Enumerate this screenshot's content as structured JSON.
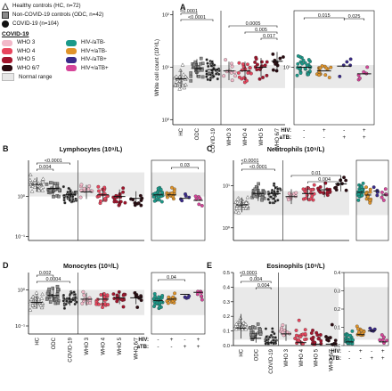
{
  "legend": {
    "cohorts": [
      {
        "label": "Healthy controls (HC, n=72)",
        "shape": "triangle"
      },
      {
        "label": "Non-COVID-19 controls (ODC, n=42)",
        "shape": "square"
      },
      {
        "label": "COVID-19 (n=104)",
        "shape": "circle"
      }
    ],
    "group_title": "COVID-19",
    "groups": [
      {
        "label": "WHO 3",
        "color": "#f2b9c9"
      },
      {
        "label": "WHO 4",
        "color": "#e8455d"
      },
      {
        "label": "WHO 5",
        "color": "#a3142c"
      },
      {
        "label": "WHO 6/7",
        "color": "#2a0a10"
      },
      {
        "label": "HIV-/aTB-",
        "color": "#1a9a8a"
      },
      {
        "label": "HIV+/aTB-",
        "color": "#e0942a"
      },
      {
        "label": "HIV-/aTB+",
        "color": "#3a2a8a"
      },
      {
        "label": "HIV+/aTB+",
        "color": "#d6469a"
      }
    ],
    "normal_range_label": "Normal range"
  },
  "hiv_row_label": "HIV:",
  "atb_row_label": "aTB:",
  "chart_data": [
    {
      "letter": "A",
      "title": "",
      "type": "scatter",
      "log_y": true,
      "ylabel": "White cell count (10⁹/L)",
      "yticks": [
        "10⁰",
        "10¹",
        "10²"
      ],
      "categories": [
        "HC",
        "ODC",
        "COVID-19",
        "WHO 3",
        "WHO 4",
        "WHO 5",
        "WHO 6/7"
      ],
      "medians": [
        6.0,
        9.5,
        9.0,
        8.5,
        8.5,
        10.0,
        13.0
      ],
      "brackets": [
        {
          "from": "HC",
          "to": "ODC",
          "label": "<0.0001"
        },
        {
          "from": "HC",
          "to": "COVID-19",
          "label": "<0.0001"
        },
        {
          "from": "WHO 3",
          "to": "WHO 6/7",
          "label": "0.0005"
        },
        {
          "from": "WHO 4",
          "to": "WHO 6/7",
          "label": "0.005"
        },
        {
          "from": "WHO 5",
          "to": "WHO 6/7",
          "label": "0.017"
        }
      ],
      "normal_range": [
        4,
        11
      ],
      "hiv_groups": {
        "hiv": [
          "-",
          "+",
          "-",
          "+"
        ],
        "atb": [
          "-",
          "-",
          "+",
          "+"
        ],
        "medians": [
          10.0,
          8.5,
          10.5,
          7.5
        ],
        "brackets": [
          {
            "from": "HIV-/aTB-",
            "to": "HIV-/aTB+",
            "label": "0.015"
          },
          {
            "from": "HIV-/aTB+",
            "to": "HIV+/aTB+",
            "label": "0.025"
          }
        ]
      }
    },
    {
      "letter": "B",
      "title": "Lymphocytes (10⁹/L)",
      "type": "scatter",
      "log_y": true,
      "yticks": [
        "10⁻¹",
        "10⁰"
      ],
      "categories": [
        "HC",
        "ODC",
        "COVID-19",
        "WHO 3",
        "WHO 4",
        "WHO 5",
        "WHO 6/7"
      ],
      "medians": [
        2.0,
        1.6,
        1.1,
        1.3,
        1.1,
        1.0,
        0.9
      ],
      "brackets": [
        {
          "from": "HC",
          "to": "COVID-19",
          "label": "<0.0001"
        },
        {
          "from": "HC",
          "to": "ODC",
          "label": "0.004"
        }
      ],
      "normal_range": [
        1,
        4
      ],
      "hiv_groups": {
        "medians": [
          1.1,
          1.1,
          0.9,
          0.8
        ],
        "brackets": [
          {
            "from": "HIV+/aTB-",
            "to": "HIV+/aTB+",
            "label": "0.03"
          }
        ]
      }
    },
    {
      "letter": "C",
      "title": "Neutrophils (10⁹/L)",
      "type": "scatter",
      "log_y": true,
      "yticks": [
        "10⁰",
        "10¹"
      ],
      "categories": [
        "HC",
        "ODC",
        "COVID-19",
        "WHO 3",
        "WHO 4",
        "WHO 5",
        "WHO 6/7"
      ],
      "medians": [
        3.5,
        6.5,
        6.5,
        5.5,
        6.5,
        8.0,
        11.0
      ],
      "brackets": [
        {
          "from": "HC",
          "to": "ODC",
          "label": "<0.0001"
        },
        {
          "from": "HC",
          "to": "COVID-19",
          "label": "<0.0001"
        },
        {
          "from": "WHO 3",
          "to": "WHO 6/7",
          "label": "0.01"
        },
        {
          "from": "WHO 4",
          "to": "WHO 6/7",
          "label": "0.004"
        }
      ],
      "normal_range": [
        2,
        7.5
      ],
      "hiv_groups": {
        "medians": [
          7.0,
          6.0,
          7.5,
          6.0
        ],
        "brackets": []
      }
    },
    {
      "letter": "D",
      "title": "Monocytes (10⁹/L)",
      "type": "scatter",
      "log_y": true,
      "yticks": [
        "10⁻¹",
        "10⁰"
      ],
      "categories": [
        "HC",
        "ODC",
        "COVID-19",
        "WHO 3",
        "WHO 4",
        "WHO 5",
        "WHO 6/7"
      ],
      "medians": [
        0.45,
        0.7,
        0.55,
        0.55,
        0.55,
        0.6,
        0.6
      ],
      "brackets": [
        {
          "from": "HC",
          "to": "ODC",
          "label": "0.002"
        },
        {
          "from": "HC",
          "to": "COVID-19",
          "label": "0.0004"
        }
      ],
      "normal_range": [
        0.2,
        1.0
      ],
      "hiv_groups": {
        "medians": [
          0.5,
          0.55,
          0.75,
          0.85
        ],
        "brackets": [
          {
            "from": "HIV-/aTB-",
            "to": "HIV-/aTB+",
            "label": "0.04"
          }
        ]
      }
    },
    {
      "letter": "E",
      "title": "Eosinophils (10⁹/L)",
      "type": "scatter",
      "log_y": false,
      "yticks": [
        "0.0",
        "0.1",
        "0.2",
        "0.3",
        "0.4",
        "0.5"
      ],
      "ylim": [
        0,
        0.5
      ],
      "categories": [
        "HC",
        "ODC",
        "COVID-19",
        "WHO 3",
        "WHO 4",
        "WHO 5",
        "WHO 6/7"
      ],
      "medians": [
        0.12,
        0.05,
        0.02,
        0.08,
        0.02,
        0.01,
        0.01
      ],
      "brackets": [
        {
          "from": "HC",
          "to": "ODC",
          "label": "<0.0001"
        },
        {
          "from": "HC",
          "to": "COVID-19",
          "label": "0.004"
        },
        {
          "from": "ODC",
          "to": "COVID-19",
          "label": "0.004"
        }
      ],
      "normal_range": [
        0.04,
        0.4
      ],
      "hiv_groups": {
        "yticks": [
          "0.0",
          "0.1",
          "0.2",
          "0.3",
          "0.4"
        ],
        "ylim": [
          0,
          0.4
        ],
        "medians": [
          0.02,
          0.06,
          0.08,
          0.02
        ],
        "brackets": []
      }
    }
  ]
}
